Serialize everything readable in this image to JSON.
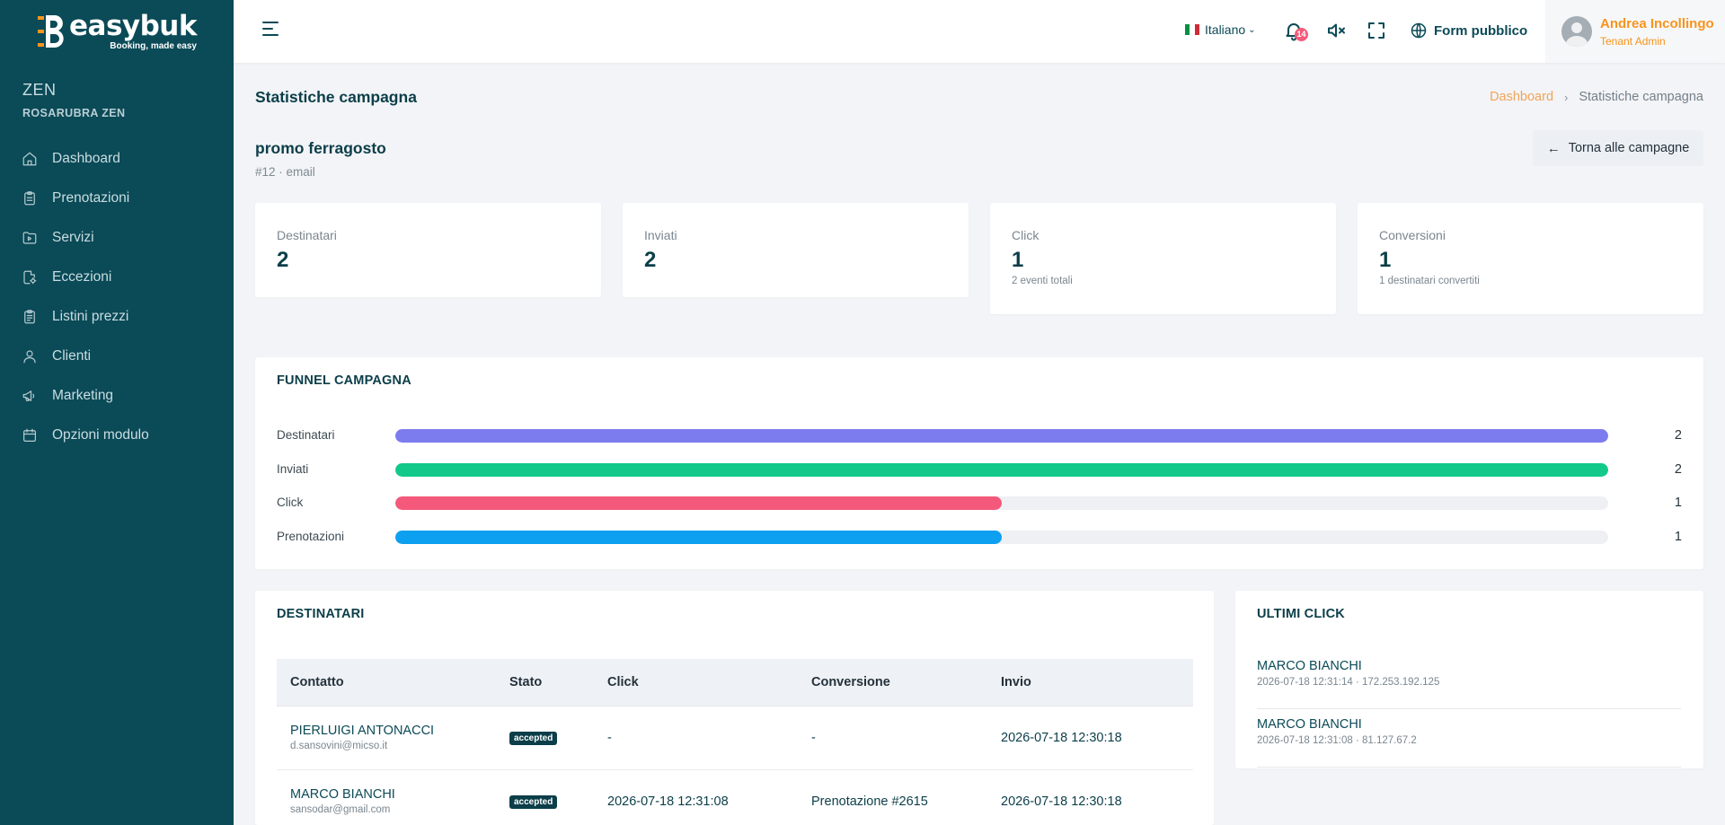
{
  "brand": {
    "name": "easybuk",
    "tagline": "Booking, made easy",
    "accent": "#f7941d",
    "sidebar_bg": "#0b4a57"
  },
  "tenant": {
    "short": "ZEN",
    "full": "ROSARUBRA ZEN"
  },
  "sidebar": {
    "items": [
      {
        "label": "Dashboard",
        "icon": "home-icon"
      },
      {
        "label": "Prenotazioni",
        "icon": "clipboard-icon"
      },
      {
        "label": "Servizi",
        "icon": "folder-play-icon"
      },
      {
        "label": "Eccezioni",
        "icon": "file-gear-icon"
      },
      {
        "label": "Listini prezzi",
        "icon": "clipboard-list-icon"
      },
      {
        "label": "Clienti",
        "icon": "user-icon"
      },
      {
        "label": "Marketing",
        "icon": "megaphone-icon"
      },
      {
        "label": "Opzioni modulo",
        "icon": "calendar-icon"
      }
    ]
  },
  "topbar": {
    "language": "Italiano",
    "notifications_count": "14",
    "public_form": "Form pubblico",
    "user_name": "Andrea Incollingo",
    "user_role": "Tenant Admin"
  },
  "page": {
    "title": "Statistiche campagna",
    "breadcrumb": {
      "home": "Dashboard",
      "current": "Statistiche campagna"
    },
    "campaign_name": "promo ferragosto",
    "campaign_meta": "#12 · email",
    "back_label": "Torna alle campagne"
  },
  "stats": [
    {
      "label": "Destinatari",
      "value": "2",
      "sub": ""
    },
    {
      "label": "Inviati",
      "value": "2",
      "sub": ""
    },
    {
      "label": "Click",
      "value": "1",
      "sub": "2 eventi totali"
    },
    {
      "label": "Conversioni",
      "value": "1",
      "sub": "1 destinatari convertiti"
    }
  ],
  "funnel": {
    "title": "FUNNEL CAMPAGNA",
    "rows": [
      {
        "label": "Destinatari",
        "value": "2",
        "fraction": 1.0,
        "color": "#7c7cee"
      },
      {
        "label": "Inviati",
        "value": "2",
        "fraction": 1.0,
        "color": "#12c98a"
      },
      {
        "label": "Click",
        "value": "1",
        "fraction": 0.5,
        "color": "#f4587a"
      },
      {
        "label": "Prenotazioni",
        "value": "1",
        "fraction": 0.5,
        "color": "#0d9ff0"
      }
    ]
  },
  "recipients": {
    "title": "DESTINATARI",
    "columns": [
      "Contatto",
      "Stato",
      "Click",
      "Conversione",
      "Invio"
    ],
    "rows": [
      {
        "name": "PIERLUIGI ANTONACCI",
        "email": "d.sansovini@micso.it",
        "status": "accepted",
        "click": "-",
        "conversion": "-",
        "sent": "2026-07-18 12:30:18"
      },
      {
        "name": "MARCO BIANCHI",
        "email": "sansodar@gmail.com",
        "status": "accepted",
        "click": "2026-07-18 12:31:08",
        "conversion": "Prenotazione #2615",
        "sent": "2026-07-18 12:30:18"
      }
    ]
  },
  "last_clicks": {
    "title": "ULTIMI CLICK",
    "items": [
      {
        "name": "MARCO BIANCHI",
        "meta": "2026-07-18 12:31:14 · 172.253.192.125"
      },
      {
        "name": "MARCO BIANCHI",
        "meta": "2026-07-18 12:31:08 · 81.127.67.2"
      }
    ]
  }
}
